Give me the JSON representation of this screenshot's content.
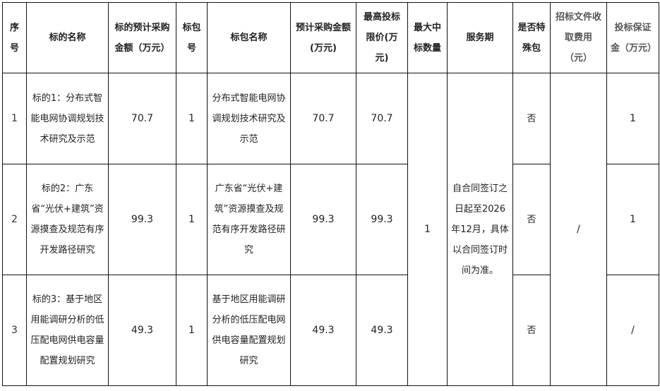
{
  "headers": {
    "seq": "序号",
    "lot_name": "标的名称",
    "lot_budget": "标的预计采购金额（万元）",
    "pkg_no": "标包号",
    "pkg_name": "标包名称",
    "pkg_budget": "预计采购金额(万元)",
    "max_price": "最高投标限价(万元)",
    "max_awards": "最大中标数量",
    "service_period": "服务期",
    "special_pkg": "是否特殊包",
    "doc_fee": "招标文件收取费用（元）",
    "bid_bond": "投标保证金（万元）"
  },
  "rows": [
    {
      "seq": "1",
      "lot_name": "标的1：分布式智能电网协调规划技术研究及示范",
      "lot_budget": "70.7",
      "pkg_no": "1",
      "pkg_name": "分布式智能电网协调规划技术研究及示范",
      "pkg_budget": "70.7",
      "max_price": "70.7",
      "special": "否",
      "bond": "1"
    },
    {
      "seq": "2",
      "lot_name": "标的2：广东省“光伏+建筑”资源摸查及规范有序开发路径研究",
      "lot_budget": "99.3",
      "pkg_no": "1",
      "pkg_name": "广东省“光伏+建筑”资源摸查及规范有序开发路径研究",
      "pkg_budget": "99.3",
      "max_price": "99.3",
      "special": "否",
      "bond": "1"
    },
    {
      "seq": "3",
      "lot_name": "标的3：基于地区用能调研分析的低压配电网供电容量配置规划研究",
      "lot_budget": "49.3",
      "pkg_no": "1",
      "pkg_name": "基于地区用能调研分析的低压配电网供电容量配置规划研究",
      "pkg_budget": "49.3",
      "max_price": "49.3",
      "special": "否",
      "bond": "/"
    }
  ],
  "merged": {
    "max_awards": "1",
    "service_period": "自合同签订之日起至2026年12月，具体以合同签订时间为准。",
    "doc_fee": "/"
  }
}
